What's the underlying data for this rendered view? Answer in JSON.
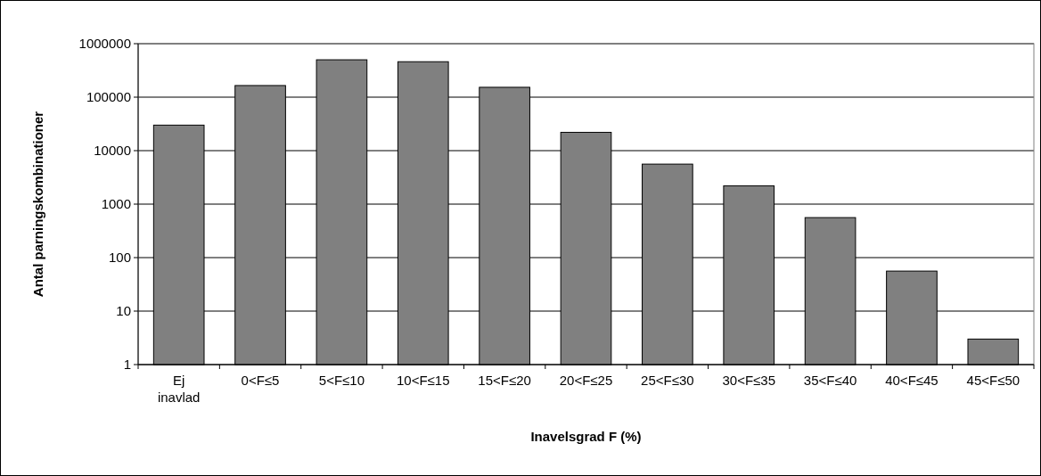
{
  "chart_data": {
    "type": "bar",
    "xlabel": "Inavelsgrad F (%)",
    "ylabel": "Antal parningskombinationer",
    "categories": [
      "Ej inavlad",
      "0<F≤5",
      "5<F≤10",
      "10<F≤15",
      "15<F≤20",
      "20<F≤25",
      "25<F≤30",
      "30<F≤35",
      "35<F≤40",
      "40<F≤45",
      "45<F≤50"
    ],
    "values": [
      30000,
      165000,
      500000,
      460000,
      153000,
      22000,
      5600,
      2200,
      560,
      56,
      3
    ],
    "color": "#808080",
    "log": "y",
    "grid": "y",
    "ylim": [
      1,
      1000000
    ],
    "yticks": [
      1,
      10,
      100,
      1000,
      10000,
      100000,
      1000000
    ]
  }
}
